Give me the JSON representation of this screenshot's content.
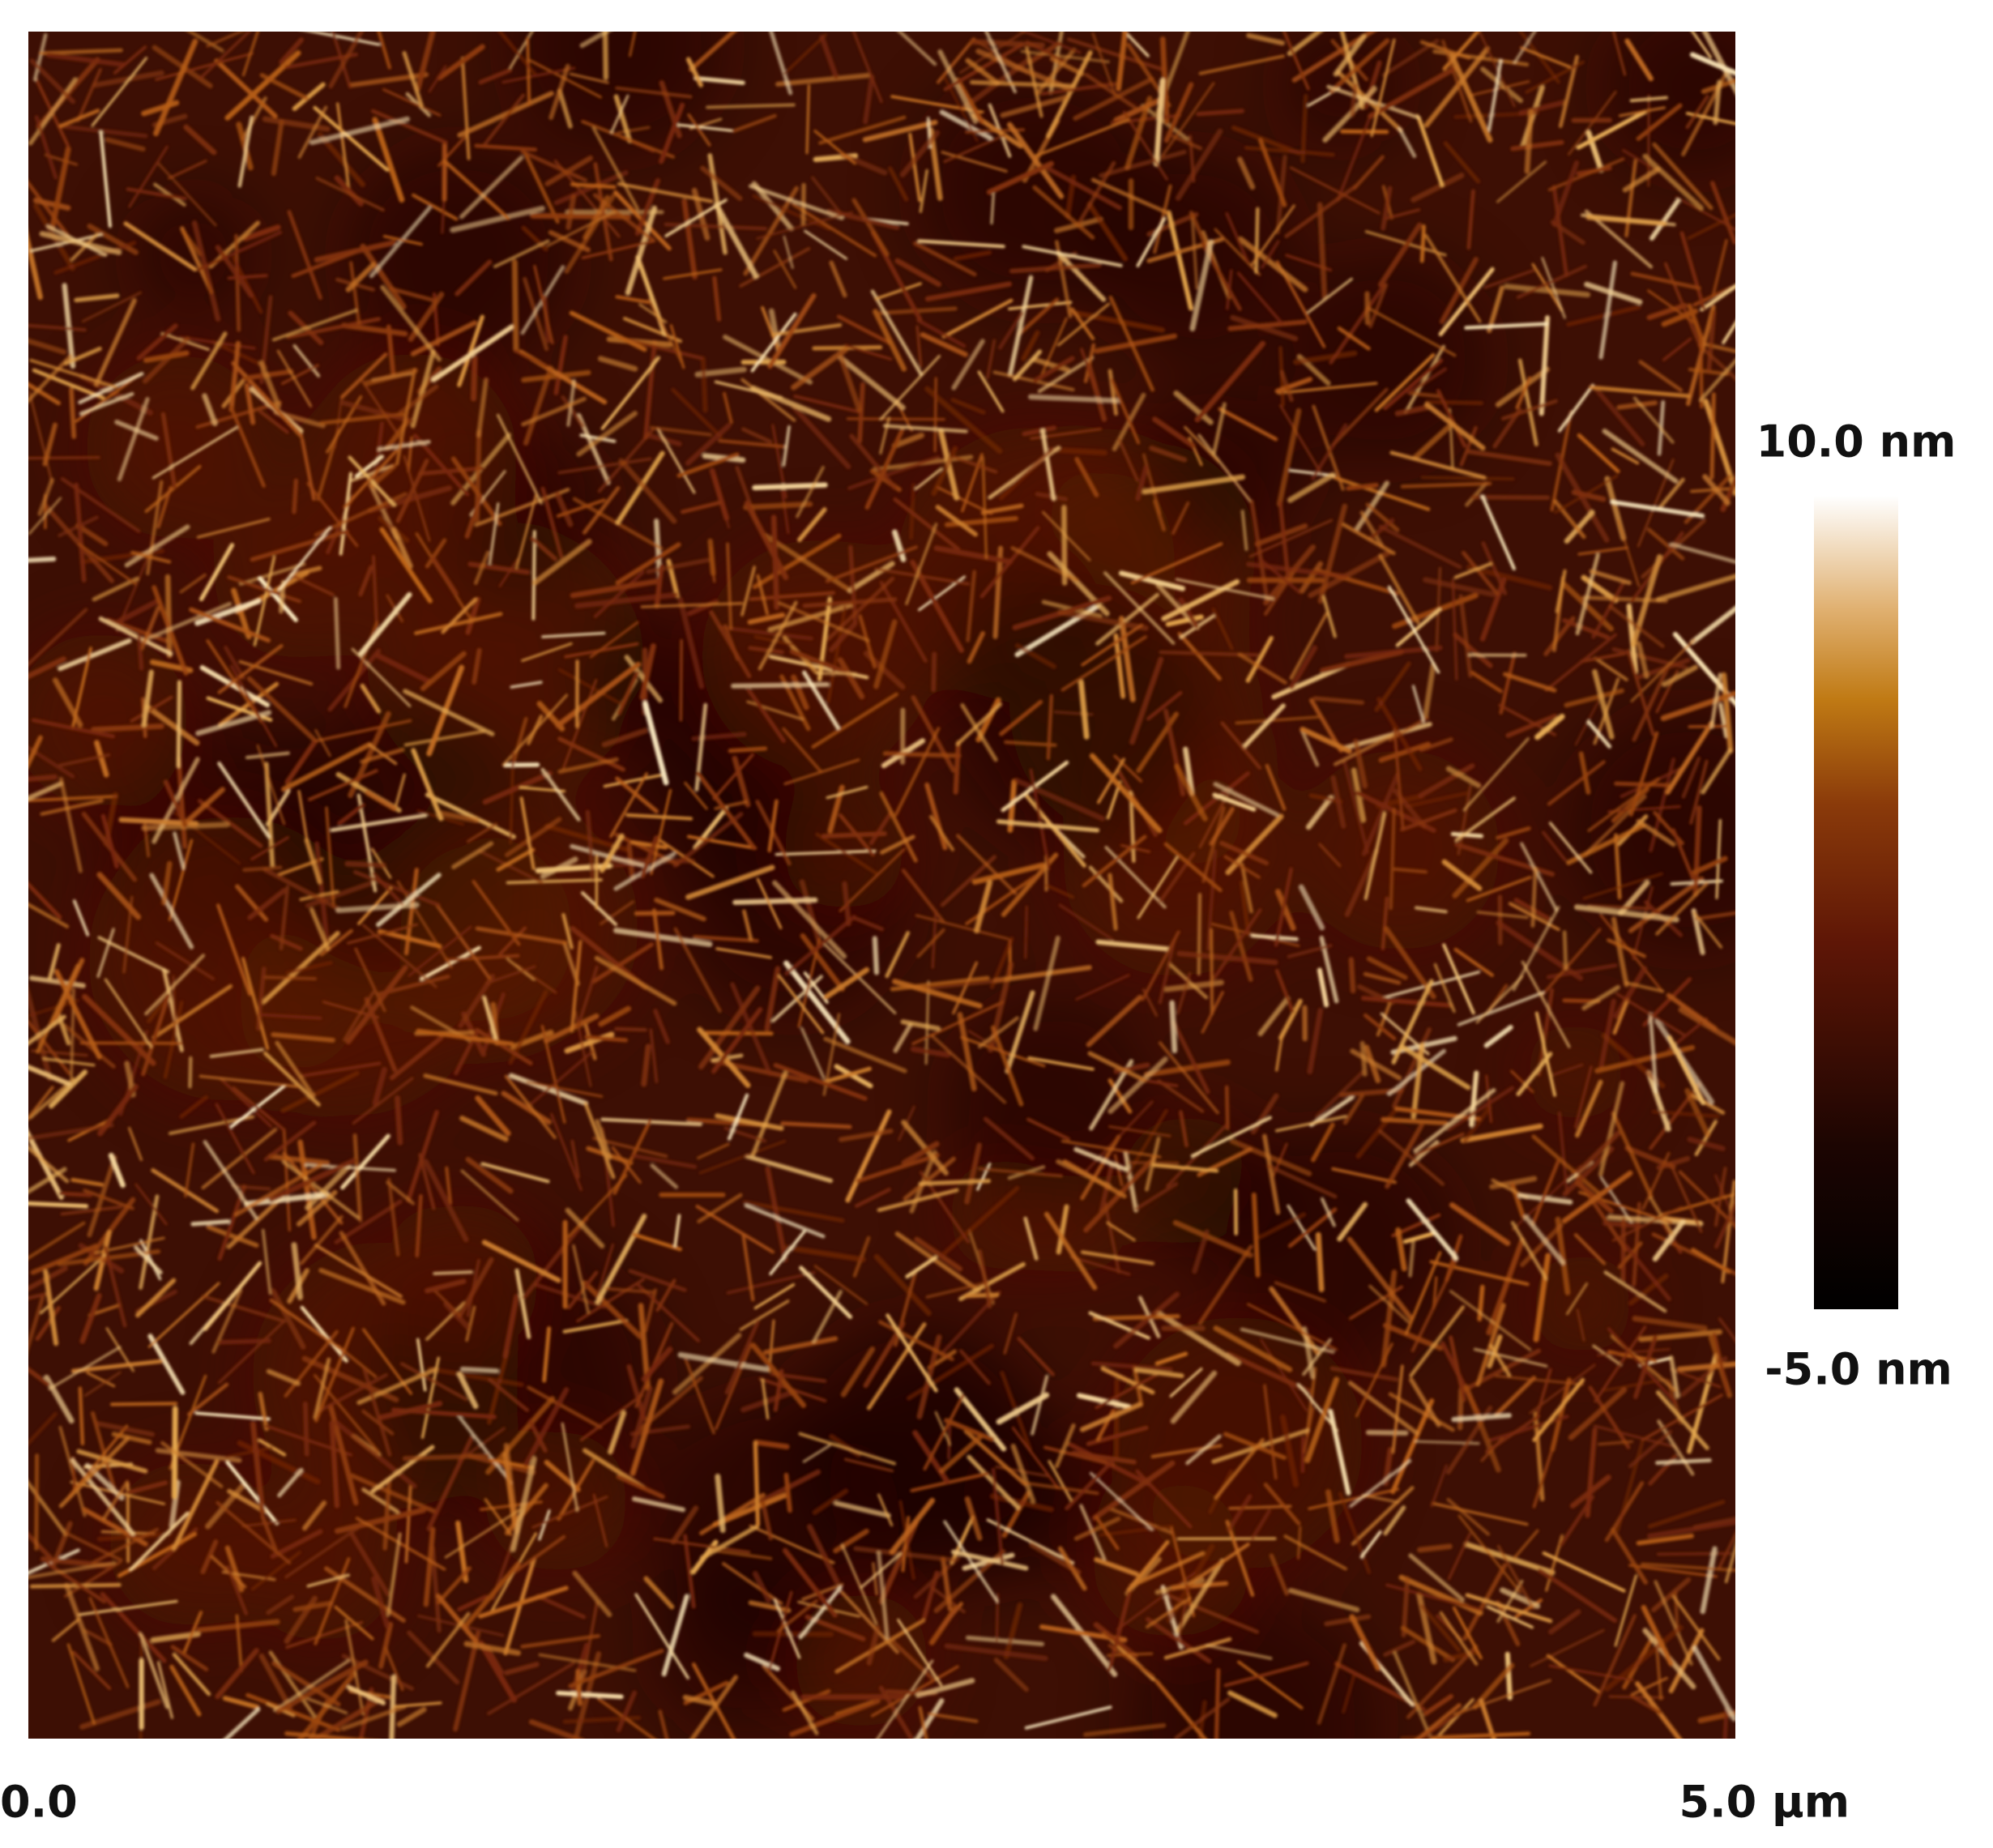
{
  "image": {
    "scale_bar": {
      "top_label": "10.0 nm",
      "bottom_label": "-5.0 nm"
    },
    "x_axis": {
      "start_label": "0.0",
      "end_label": "5.0 µm"
    }
  }
}
